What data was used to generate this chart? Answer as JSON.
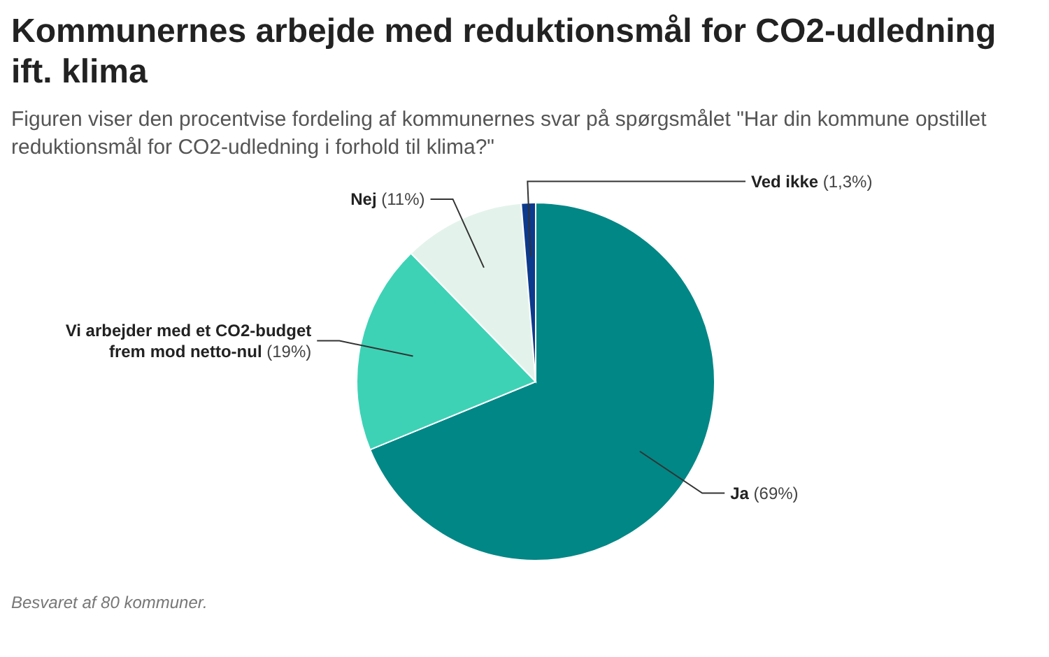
{
  "chart_data": {
    "type": "pie",
    "title": "Kommunernes arbejde med reduktionsmål for CO2-udledning ift. klima",
    "subtitle": "Figuren viser den procentvise fordeling af kommunernes svar på spørgsmålet \"Har din kommune opstillet reduktionsmål for CO2-udledning i forhold til klima?\"",
    "categories": [
      "Ja",
      "Vi arbejder med et CO2-budget frem mod netto-nul",
      "Nej",
      "Ved ikke"
    ],
    "values": [
      69,
      19,
      11,
      1.3
    ],
    "value_labels": [
      "(69%)",
      "(19%)",
      "(11%)",
      "(1,3%)"
    ],
    "colors": [
      "#008786",
      "#3dd2b6",
      "#e3f3eb",
      "#0c3a8c"
    ],
    "annotations": [
      "Besvaret af 80 kommuner."
    ]
  }
}
